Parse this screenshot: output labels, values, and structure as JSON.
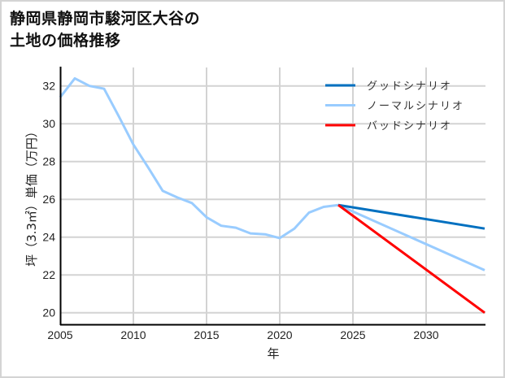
{
  "title": "静岡県静岡市駿河区大谷の\n土地の価格推移",
  "chart_data": {
    "type": "line",
    "title": "静岡県静岡市駿河区大谷の土地の価格推移",
    "xlabel": "年",
    "ylabel": "坪（3.3㎡）単価（万円）",
    "xlim": [
      2005,
      2034
    ],
    "ylim": [
      19.4,
      33.1
    ],
    "x_ticks": [
      2005,
      2010,
      2015,
      2020,
      2025,
      2030
    ],
    "y_ticks": [
      20,
      22,
      24,
      26,
      28,
      30,
      32
    ],
    "grid": true,
    "legend_position": "upper right",
    "series": [
      {
        "name": "グッドシナリオ",
        "color": "#0070C0",
        "x": [
          2024,
          2034
        ],
        "values": [
          25.7,
          24.45
        ]
      },
      {
        "name": "ノーマルシナリオ",
        "color": "#99CCFF",
        "x": [
          2005,
          2006,
          2007,
          2008,
          2009,
          2010,
          2011,
          2012,
          2013,
          2014,
          2015,
          2016,
          2017,
          2018,
          2019,
          2020,
          2021,
          2022,
          2023,
          2024,
          2034
        ],
        "values": [
          31.4,
          32.4,
          32.0,
          31.85,
          30.4,
          28.9,
          27.7,
          26.45,
          26.1,
          25.8,
          25.05,
          24.6,
          24.5,
          24.2,
          24.15,
          23.95,
          24.45,
          25.3,
          25.6,
          25.7,
          22.25
        ]
      },
      {
        "name": "バッドシナリオ",
        "color": "#FF0000",
        "x": [
          2024,
          2034
        ],
        "values": [
          25.7,
          20.0
        ]
      }
    ]
  }
}
